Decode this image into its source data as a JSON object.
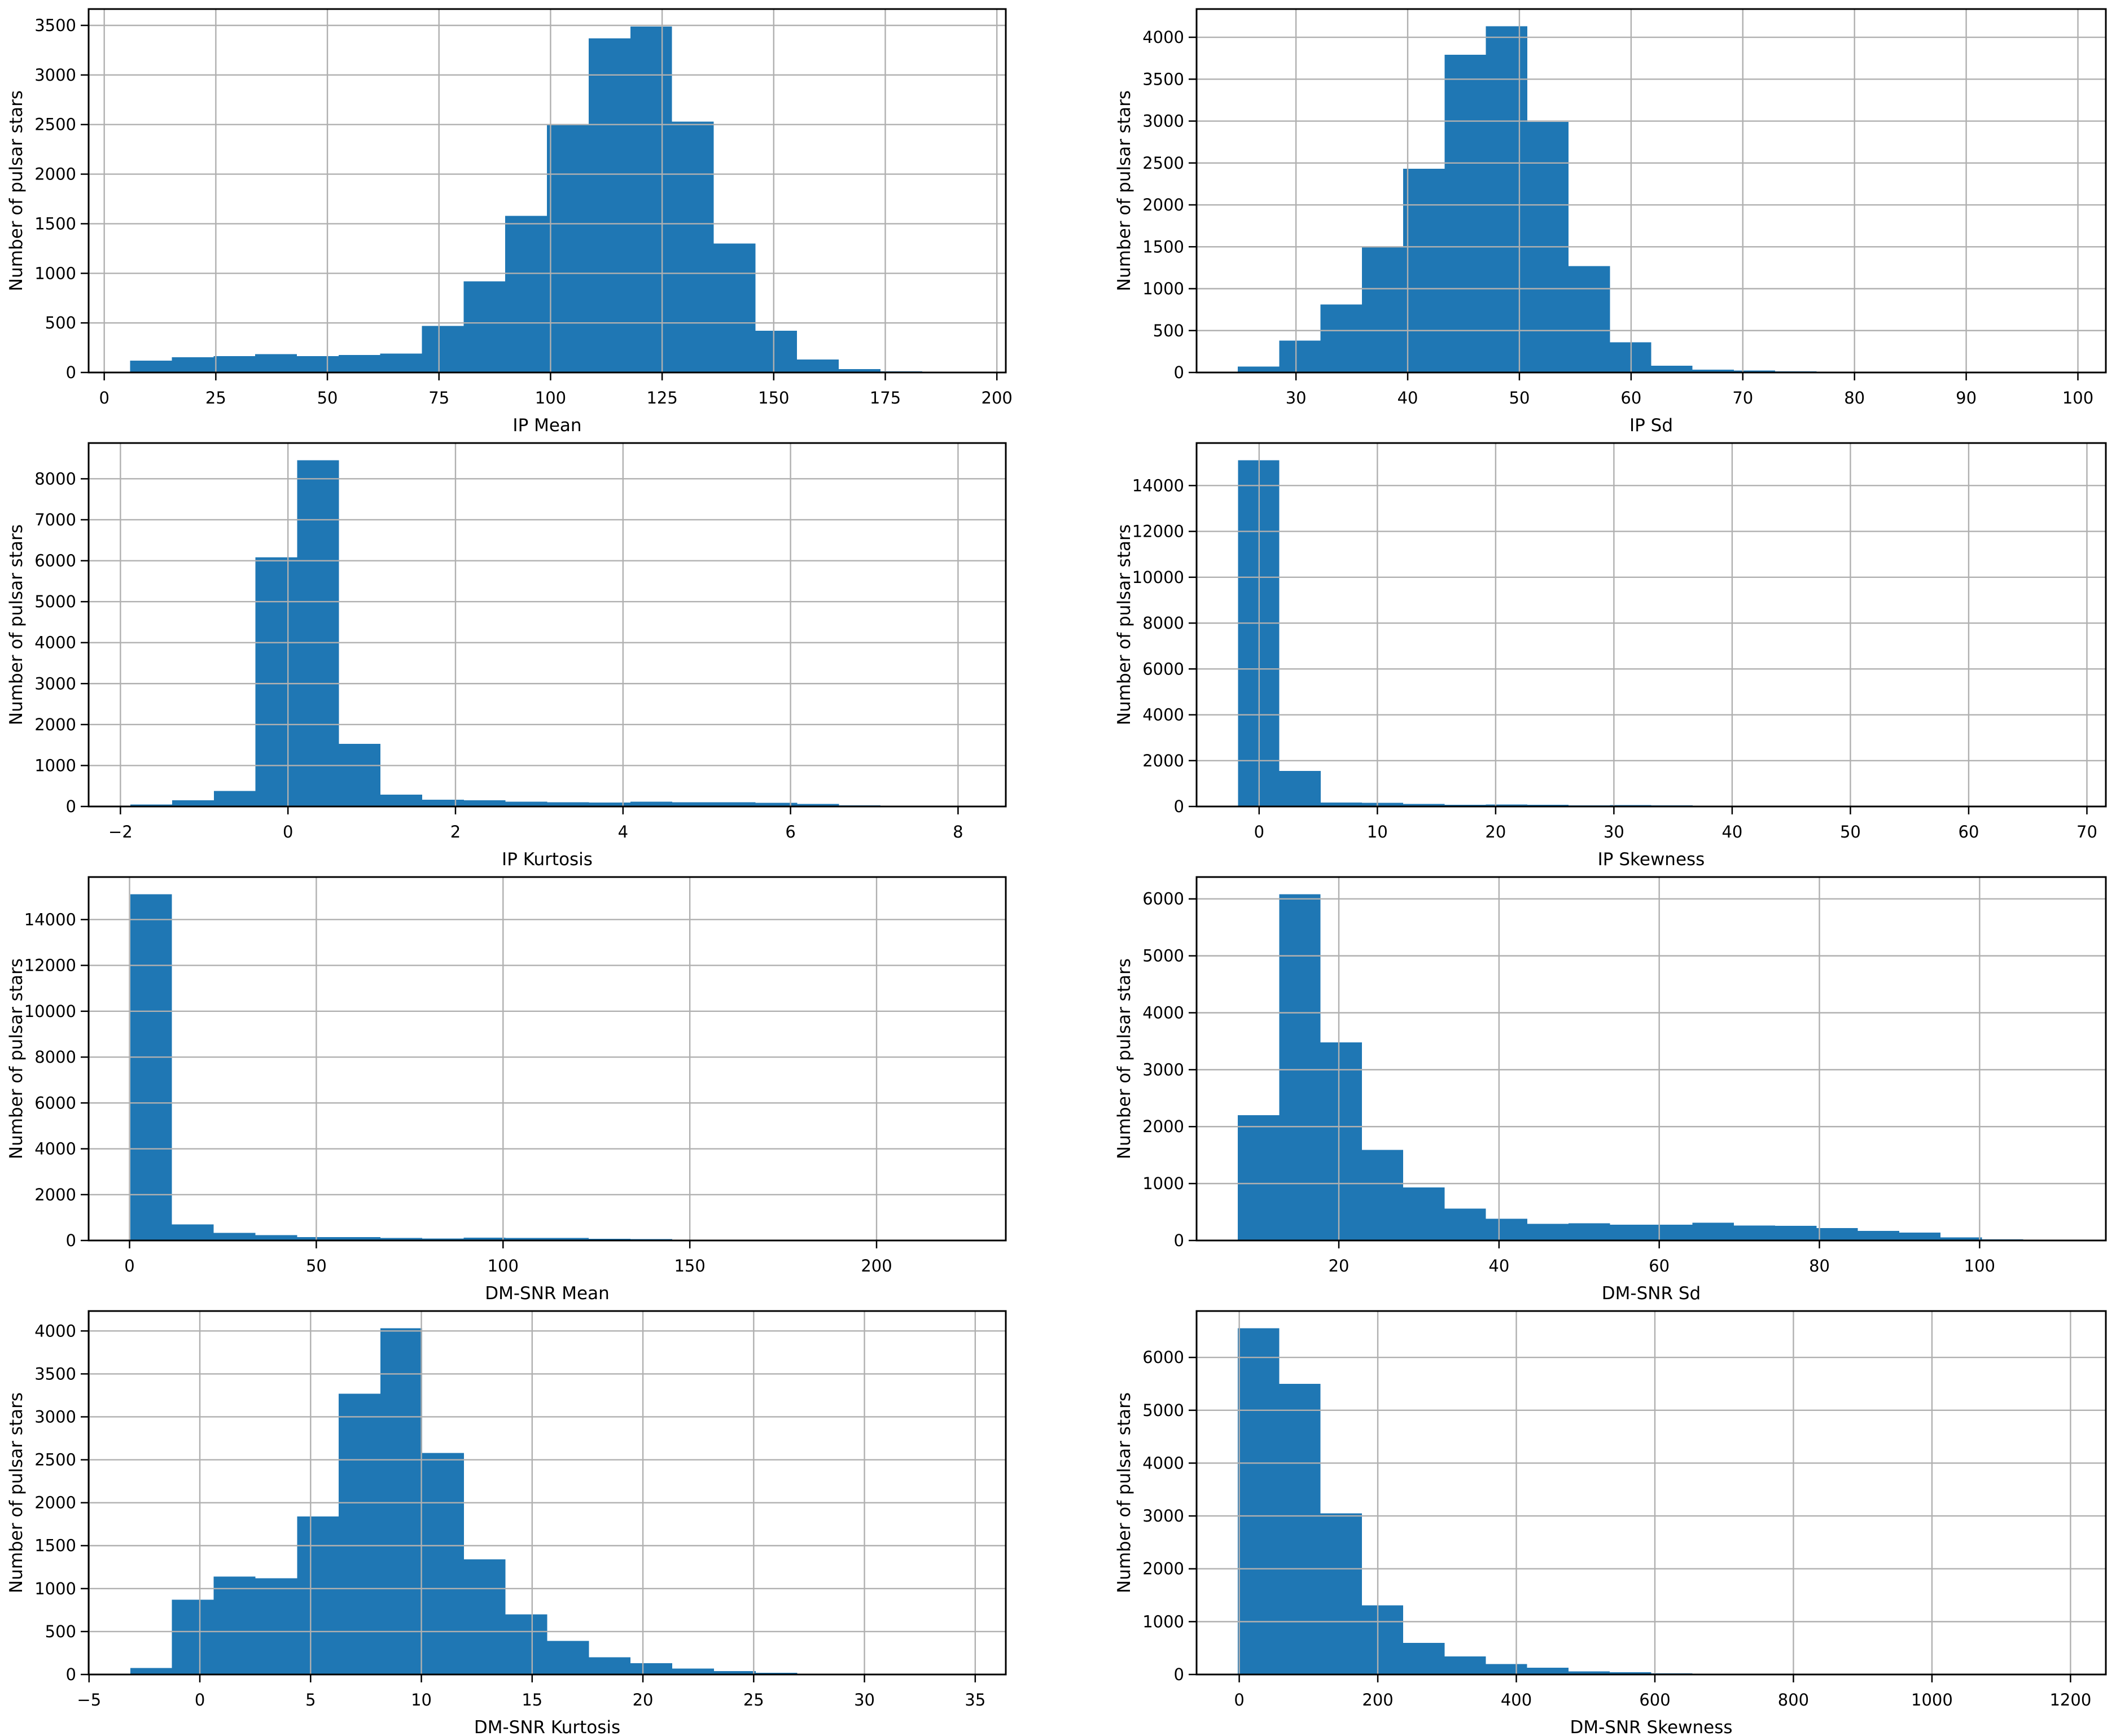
{
  "figure": {
    "background": "#ffffff",
    "bar_color": "#1f77b4",
    "grid_color": "#b0b0b0",
    "axis_color": "#000000",
    "ylabel": "Number of pulsar stars"
  },
  "chart_data": [
    {
      "type": "bar",
      "title": "",
      "xlabel": "IP Mean",
      "ylabel": "Number of pulsar stars",
      "grid": true,
      "legend": "none",
      "bin_start": 5.8,
      "bin_width": 9.34,
      "counts": [
        120,
        155,
        165,
        185,
        165,
        175,
        190,
        470,
        920,
        1580,
        2500,
        3370,
        3490,
        2530,
        1300,
        420,
        130,
        35,
        10,
        5
      ],
      "x_tick_values": [
        0,
        25,
        50,
        75,
        100,
        125,
        150,
        175,
        200
      ],
      "x_tick_labels": [
        "0",
        "25",
        "50",
        "75",
        "100",
        "125",
        "150",
        "175",
        "200"
      ],
      "y_tick_values": [
        0,
        500,
        1000,
        1500,
        2000,
        2500,
        3000,
        3500
      ],
      "xlim": [
        -3.5,
        202.0
      ],
      "ylim": [
        0,
        3665
      ]
    },
    {
      "type": "bar",
      "title": "",
      "xlabel": "IP Sd",
      "ylabel": "Number of pulsar stars",
      "grid": true,
      "legend": "none",
      "bin_start": 24.8,
      "bin_width": 3.7,
      "counts": [
        70,
        380,
        810,
        1500,
        2430,
        3790,
        4130,
        2990,
        1270,
        360,
        80,
        35,
        25,
        15,
        6,
        3,
        2,
        1,
        1,
        1
      ],
      "x_tick_values": [
        30,
        40,
        50,
        60,
        70,
        80,
        90,
        100
      ],
      "x_tick_labels": [
        "30",
        "40",
        "50",
        "60",
        "70",
        "80",
        "90",
        "100"
      ],
      "y_tick_values": [
        0,
        500,
        1000,
        1500,
        2000,
        2500,
        3000,
        3500,
        4000
      ],
      "xlim": [
        21.1,
        102.5
      ],
      "ylim": [
        0,
        4337
      ]
    },
    {
      "type": "bar",
      "title": "",
      "xlabel": "IP Kurtosis",
      "ylabel": "Number of pulsar stars",
      "grid": true,
      "legend": "none",
      "bin_start": -1.88,
      "bin_width": 0.4975,
      "counts": [
        50,
        150,
        380,
        6080,
        8450,
        1530,
        290,
        165,
        150,
        115,
        100,
        95,
        120,
        105,
        100,
        90,
        60,
        25,
        10,
        5
      ],
      "x_tick_values": [
        -2,
        0,
        2,
        4,
        6,
        8
      ],
      "x_tick_labels": [
        "−2",
        "0",
        "2",
        "4",
        "6",
        "8"
      ],
      "y_tick_values": [
        0,
        1000,
        2000,
        3000,
        4000,
        5000,
        6000,
        7000,
        8000
      ],
      "xlim": [
        -2.38,
        8.57
      ],
      "ylim": [
        0,
        8873
      ]
    },
    {
      "type": "bar",
      "title": "",
      "xlabel": "IP Skewness",
      "ylabel": "Number of pulsar stars",
      "grid": true,
      "legend": "none",
      "bin_start": -1.79,
      "bin_width": 3.495,
      "counts": [
        15100,
        1550,
        170,
        160,
        110,
        80,
        85,
        75,
        55,
        60,
        50,
        30,
        25,
        10,
        5,
        3,
        2,
        1,
        1,
        1
      ],
      "x_tick_values": [
        0,
        10,
        20,
        30,
        40,
        50,
        60,
        70
      ],
      "x_tick_labels": [
        "0",
        "10",
        "20",
        "30",
        "40",
        "50",
        "60",
        "70"
      ],
      "y_tick_values": [
        0,
        2000,
        4000,
        6000,
        8000,
        10000,
        12000,
        14000
      ],
      "xlim": [
        -5.29,
        71.6
      ],
      "ylim": [
        0,
        15855
      ]
    },
    {
      "type": "bar",
      "title": "",
      "xlabel": "DM-SNR Mean",
      "ylabel": "Number of pulsar stars",
      "grid": true,
      "legend": "none",
      "bin_start": 0.2,
      "bin_width": 11.16,
      "counts": [
        15100,
        700,
        330,
        230,
        150,
        150,
        110,
        90,
        120,
        110,
        110,
        70,
        60,
        30,
        25,
        20,
        10,
        5,
        3,
        2
      ],
      "x_tick_values": [
        0,
        50,
        100,
        150,
        200
      ],
      "x_tick_labels": [
        "0",
        "50",
        "100",
        "150",
        "200"
      ],
      "y_tick_values": [
        0,
        2000,
        4000,
        6000,
        8000,
        10000,
        12000,
        14000
      ],
      "xlim": [
        -10.96,
        234.6
      ],
      "ylim": [
        0,
        15855
      ]
    },
    {
      "type": "bar",
      "title": "",
      "xlabel": "DM-SNR Sd",
      "ylabel": "Number of pulsar stars",
      "grid": true,
      "legend": "none",
      "bin_start": 7.4,
      "bin_width": 5.16,
      "counts": [
        2200,
        6080,
        3480,
        1590,
        930,
        560,
        380,
        290,
        300,
        280,
        280,
        310,
        265,
        260,
        220,
        170,
        140,
        55,
        20,
        10
      ],
      "x_tick_values": [
        20,
        40,
        60,
        80,
        100
      ],
      "x_tick_labels": [
        "20",
        "40",
        "60",
        "80",
        "100"
      ],
      "y_tick_values": [
        0,
        1000,
        2000,
        3000,
        4000,
        5000,
        6000
      ],
      "xlim": [
        2.24,
        115.76
      ],
      "ylim": [
        0,
        6384
      ]
    },
    {
      "type": "bar",
      "title": "",
      "xlabel": "DM-SNR Kurtosis",
      "ylabel": "Number of pulsar stars",
      "grid": true,
      "legend": "none",
      "bin_start": -3.14,
      "bin_width": 1.882,
      "counts": [
        75,
        870,
        1140,
        1120,
        1840,
        3270,
        4030,
        2580,
        1340,
        700,
        390,
        200,
        130,
        70,
        40,
        20,
        10,
        5,
        2,
        1
      ],
      "x_tick_values": [
        -5,
        0,
        5,
        10,
        15,
        20,
        25,
        30,
        35
      ],
      "x_tick_labels": [
        "−5",
        "0",
        "5",
        "10",
        "15",
        "20",
        "25",
        "30",
        "35"
      ],
      "y_tick_values": [
        0,
        500,
        1000,
        1500,
        2000,
        2500,
        3000,
        3500,
        4000
      ],
      "xlim": [
        -5.02,
        36.38
      ],
      "ylim": [
        0,
        4232
      ]
    },
    {
      "type": "bar",
      "title": "",
      "xlabel": "DM-SNR Skewness",
      "ylabel": "Number of pulsar stars",
      "grid": true,
      "legend": "none",
      "bin_start": -2.0,
      "bin_width": 59.66,
      "counts": [
        6550,
        5500,
        3050,
        1310,
        600,
        340,
        195,
        130,
        60,
        45,
        20,
        15,
        5,
        3,
        2,
        1,
        1,
        0,
        0,
        1
      ],
      "x_tick_values": [
        0,
        200,
        400,
        600,
        800,
        1000,
        1200
      ],
      "x_tick_labels": [
        "0",
        "200",
        "400",
        "600",
        "800",
        "1000",
        "1200"
      ],
      "y_tick_values": [
        0,
        1000,
        2000,
        3000,
        4000,
        5000,
        6000
      ],
      "xlim": [
        -61.6,
        1251.0
      ],
      "ylim": [
        0,
        6878
      ]
    }
  ]
}
